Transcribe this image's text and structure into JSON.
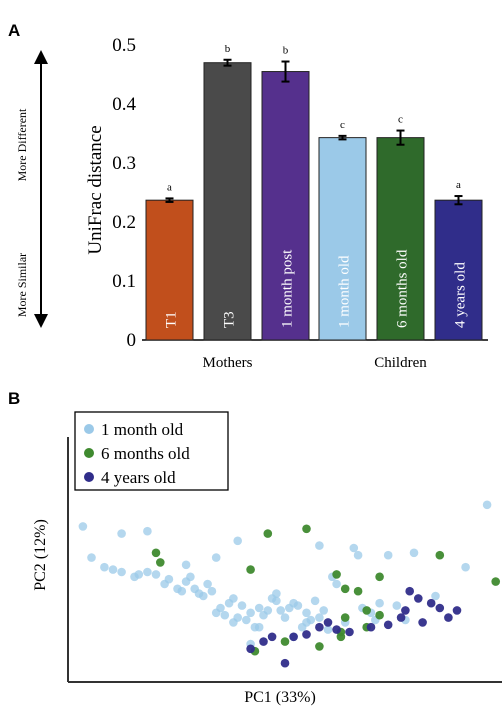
{
  "chart_data": [
    {
      "type": "bar",
      "panel": "A",
      "ylabel": "UniFrac distance",
      "ylim": [
        0,
        0.5
      ],
      "yticks": [
        0,
        0.1,
        0.2,
        0.3,
        0.4,
        0.5
      ],
      "ytick_labels": [
        "0",
        "0.1",
        "0.2",
        "0.3",
        "0.4",
        "0.5"
      ],
      "side_labels": {
        "top": "More Different",
        "bottom": "More Similar"
      },
      "groups": [
        {
          "label": "Mothers",
          "bars": [
            0,
            1,
            2
          ]
        },
        {
          "label": "Children",
          "bars": [
            3,
            4,
            5
          ]
        }
      ],
      "categories": [
        "T1",
        "T3",
        "1 month post",
        "1 month old",
        "6 months old",
        "4 years old"
      ],
      "values": [
        0.237,
        0.47,
        0.455,
        0.343,
        0.343,
        0.237
      ],
      "errors": [
        0.003,
        0.005,
        0.017,
        0.003,
        0.012,
        0.007
      ],
      "significance": [
        "a",
        "b",
        "b",
        "c",
        "c",
        "a"
      ],
      "colors": [
        "#c14f1c",
        "#4a4a4a",
        "#55308d",
        "#9bc9e8",
        "#2f6a2b",
        "#302d8a"
      ],
      "grid": false
    },
    {
      "type": "scatter",
      "panel": "B",
      "xlabel": "PC1 (33%)",
      "ylabel": "PC2 (12%)",
      "xlim": [
        0,
        100
      ],
      "ylim": [
        0,
        100
      ],
      "legend_position": "top-left",
      "grid": false,
      "series": [
        {
          "name": "1 month old",
          "color": "#9bc9e8",
          "x": [
            3,
            12,
            18,
            5,
            8,
            10,
            12,
            15,
            16,
            18,
            20,
            22,
            23,
            25,
            26,
            27,
            28,
            29,
            30,
            31,
            32,
            33,
            34,
            35,
            36,
            37,
            38,
            39,
            40,
            41,
            42,
            43,
            44,
            45,
            46,
            47,
            48,
            49,
            50,
            51,
            52,
            53,
            54,
            55,
            56,
            57,
            58,
            59,
            60,
            62,
            64,
            66,
            68,
            70,
            72,
            74,
            76,
            78,
            80,
            85,
            92,
            97,
            34,
            39,
            27,
            44,
            52,
            61,
            67,
            71,
            48,
            58,
            38,
            42,
            55
          ],
          "y": [
            64,
            61,
            62,
            51,
            47,
            46,
            45,
            43,
            44,
            45,
            44,
            40,
            42,
            38,
            37,
            41,
            43,
            38,
            36,
            35,
            40,
            37,
            28,
            30,
            27,
            32,
            24,
            26,
            31,
            25,
            28,
            22,
            30,
            27,
            29,
            34,
            33,
            29,
            26,
            30,
            32,
            31,
            22,
            28,
            25,
            33,
            26,
            29,
            21,
            40,
            24,
            55,
            30,
            28,
            32,
            52,
            31,
            25,
            53,
            35,
            47,
            73,
            51,
            58,
            48,
            22,
            18,
            43,
            52,
            25,
            36,
            56,
            34,
            15,
            24
          ]
        },
        {
          "name": "6 months old",
          "color": "#3f8a2f",
          "x": [
            46,
            55,
            20,
            21,
            42,
            62,
            64,
            67,
            72,
            86,
            99,
            64,
            69,
            72,
            69,
            63,
            43,
            58,
            63,
            50
          ],
          "y": [
            61,
            63,
            53,
            49,
            46,
            44,
            38,
            37,
            43,
            52,
            41,
            26,
            29,
            27,
            22,
            18,
            12,
            14,
            20,
            16
          ]
        },
        {
          "name": "4 years old",
          "color": "#302d8a",
          "x": [
            79,
            81,
            84,
            86,
            90,
            88,
            77,
            70,
            60,
            58,
            47,
            42,
            50,
            55,
            78,
            82,
            74,
            65,
            62,
            52,
            45
          ],
          "y": [
            37,
            34,
            32,
            30,
            29,
            26,
            26,
            22,
            24,
            22,
            18,
            13,
            7,
            19,
            29,
            24,
            23,
            20,
            21,
            18,
            16
          ]
        }
      ]
    }
  ],
  "panels": {
    "a_letter": "A",
    "b_letter": "B"
  }
}
